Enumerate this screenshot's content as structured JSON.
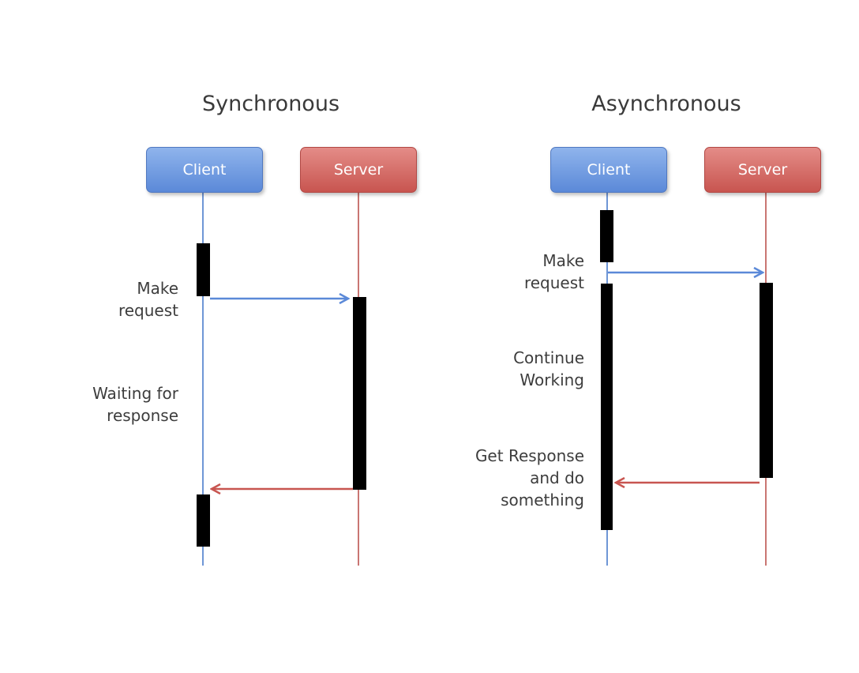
{
  "synchronous": {
    "title": "Synchronous",
    "client_label": "Client",
    "server_label": "Server",
    "notes": {
      "make_request": "Make\nrequest",
      "waiting": "Waiting for\nresponse"
    }
  },
  "asynchronous": {
    "title": "Asynchronous",
    "client_label": "Client",
    "server_label": "Server",
    "notes": {
      "make_request": "Make\nrequest",
      "continue": "Continue\nWorking",
      "get_response": "Get Response\nand do\nsomething"
    }
  },
  "colors": {
    "client": "#5b89d8",
    "server": "#c85550",
    "activation": "#000000"
  }
}
